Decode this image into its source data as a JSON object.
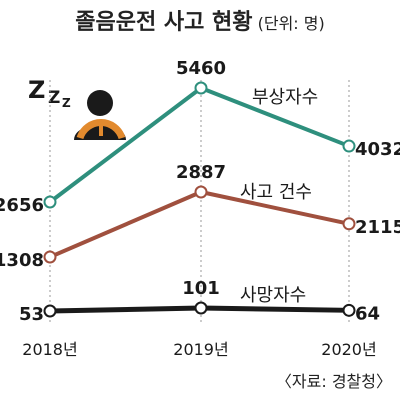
{
  "title": "졸음운전 사고 현황",
  "unit": "(단위: 명)",
  "source": "〈자료: 경찰청〉",
  "colors": {
    "injured": "#2e8f7d",
    "accidents": "#a0503e",
    "deaths": "#1a1a1a",
    "gridline": "#999999",
    "icon_orange": "#e28a2e"
  },
  "icons": [
    "sleep-zzz-icon",
    "sleeping-driver-icon"
  ],
  "chart_data": {
    "type": "line",
    "x": [
      "2018년",
      "2019년",
      "2020년"
    ],
    "series": [
      {
        "name": "부상자수",
        "values": [
          2656,
          5460,
          4032
        ]
      },
      {
        "name": "사고 건수",
        "values": [
          1308,
          2887,
          2115
        ]
      },
      {
        "name": "사망자수",
        "values": [
          53,
          101,
          64
        ]
      }
    ],
    "grid": "vertical dotted lines at each year",
    "legend": "series names placed next to each line"
  }
}
